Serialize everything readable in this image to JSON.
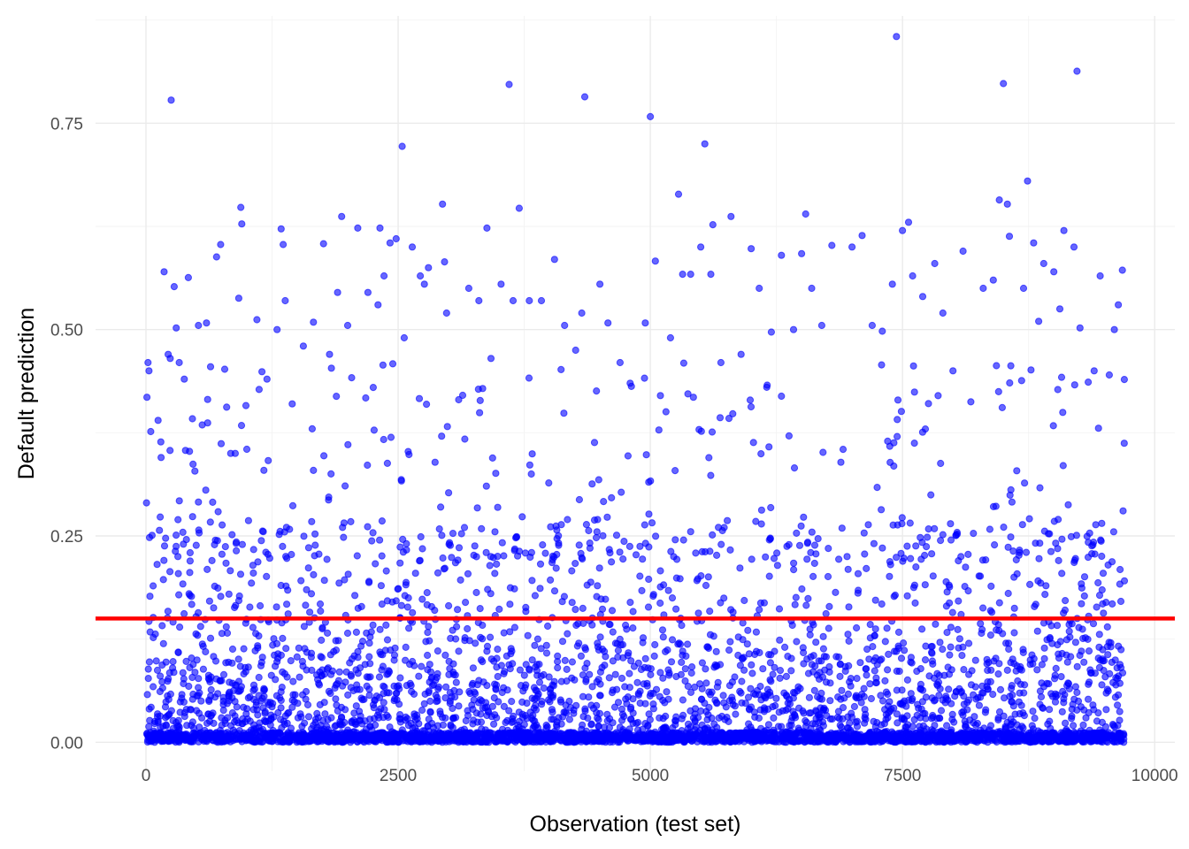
{
  "chart_data": {
    "type": "scatter",
    "title": "",
    "xlabel": "Observation (test set)",
    "ylabel": "Default prediction",
    "xlim": [
      -500,
      10200
    ],
    "ylim": [
      -0.035,
      0.88
    ],
    "x_ticks": [
      0,
      2500,
      5000,
      7500,
      10000
    ],
    "x_tick_labels": [
      "0",
      "2500",
      "5000",
      "7500",
      "10000"
    ],
    "y_ticks": [
      0.0,
      0.25,
      0.5,
      0.75
    ],
    "y_tick_labels": [
      "0.00",
      "0.25",
      "0.50",
      "0.75"
    ],
    "grid": true,
    "point_color": "#0000ff",
    "point_opacity": 0.6,
    "reference_line": {
      "y": 0.15,
      "color": "#ff0000"
    },
    "n_observations": 9700,
    "series": [
      {
        "points": [
          [
            10,
            0.418
          ],
          [
            20,
            0.46
          ],
          [
            30,
            0.45
          ],
          [
            120,
            0.39
          ],
          [
            150,
            0.345
          ],
          [
            180,
            0.57
          ],
          [
            220,
            0.47
          ],
          [
            240,
            0.465
          ],
          [
            250,
            0.778
          ],
          [
            280,
            0.552
          ],
          [
            300,
            0.502
          ],
          [
            330,
            0.46
          ],
          [
            380,
            0.44
          ],
          [
            420,
            0.563
          ],
          [
            460,
            0.392
          ],
          [
            520,
            0.505
          ],
          [
            600,
            0.508
          ],
          [
            640,
            0.455
          ],
          [
            700,
            0.588
          ],
          [
            740,
            0.603
          ],
          [
            800,
            0.406
          ],
          [
            840,
            0.35
          ],
          [
            920,
            0.538
          ],
          [
            940,
            0.648
          ],
          [
            950,
            0.628
          ],
          [
            1000,
            0.355
          ],
          [
            1100,
            0.512
          ],
          [
            1150,
            0.449
          ],
          [
            1200,
            0.44
          ],
          [
            1300,
            0.5
          ],
          [
            1340,
            0.622
          ],
          [
            1360,
            0.603
          ],
          [
            1380,
            0.535
          ],
          [
            1450,
            0.41
          ],
          [
            1560,
            0.48
          ],
          [
            1660,
            0.509
          ],
          [
            1760,
            0.604
          ],
          [
            1820,
            0.47
          ],
          [
            1900,
            0.545
          ],
          [
            1940,
            0.637
          ],
          [
            2000,
            0.505
          ],
          [
            2100,
            0.623
          ],
          [
            2200,
            0.545
          ],
          [
            2300,
            0.53
          ],
          [
            2320,
            0.623
          ],
          [
            2360,
            0.565
          ],
          [
            2420,
            0.605
          ],
          [
            2480,
            0.61
          ],
          [
            2540,
            0.722
          ],
          [
            2560,
            0.49
          ],
          [
            2640,
            0.6
          ],
          [
            2720,
            0.565
          ],
          [
            2760,
            0.555
          ],
          [
            2800,
            0.575
          ],
          [
            2940,
            0.652
          ],
          [
            2960,
            0.582
          ],
          [
            2980,
            0.52
          ],
          [
            3100,
            0.415
          ],
          [
            3200,
            0.55
          ],
          [
            3300,
            0.535
          ],
          [
            3380,
            0.623
          ],
          [
            3420,
            0.465
          ],
          [
            3520,
            0.555
          ],
          [
            3600,
            0.797
          ],
          [
            3640,
            0.535
          ],
          [
            3700,
            0.647
          ],
          [
            3800,
            0.535
          ],
          [
            3820,
            0.325
          ],
          [
            3920,
            0.535
          ],
          [
            4050,
            0.585
          ],
          [
            4150,
            0.505
          ],
          [
            4260,
            0.475
          ],
          [
            4320,
            0.52
          ],
          [
            4350,
            0.782
          ],
          [
            4500,
            0.555
          ],
          [
            4580,
            0.508
          ],
          [
            4700,
            0.46
          ],
          [
            4800,
            0.435
          ],
          [
            4950,
            0.508
          ],
          [
            5000,
            0.758
          ],
          [
            5050,
            0.583
          ],
          [
            5100,
            0.42
          ],
          [
            5200,
            0.49
          ],
          [
            5280,
            0.664
          ],
          [
            5320,
            0.567
          ],
          [
            5400,
            0.567
          ],
          [
            5500,
            0.6
          ],
          [
            5540,
            0.725
          ],
          [
            5600,
            0.567
          ],
          [
            5620,
            0.627
          ],
          [
            5700,
            0.46
          ],
          [
            5800,
            0.637
          ],
          [
            5900,
            0.47
          ],
          [
            6000,
            0.598
          ],
          [
            6080,
            0.55
          ],
          [
            6200,
            0.497
          ],
          [
            6300,
            0.59
          ],
          [
            6420,
            0.5
          ],
          [
            6500,
            0.592
          ],
          [
            6540,
            0.64
          ],
          [
            6600,
            0.55
          ],
          [
            6700,
            0.505
          ],
          [
            6800,
            0.602
          ],
          [
            7000,
            0.6
          ],
          [
            7100,
            0.614
          ],
          [
            7200,
            0.505
          ],
          [
            7300,
            0.498
          ],
          [
            7400,
            0.555
          ],
          [
            7440,
            0.855
          ],
          [
            7500,
            0.62
          ],
          [
            7560,
            0.63
          ],
          [
            7600,
            0.565
          ],
          [
            7700,
            0.54
          ],
          [
            7820,
            0.58
          ],
          [
            7900,
            0.52
          ],
          [
            8000,
            0.45
          ],
          [
            8100,
            0.595
          ],
          [
            8300,
            0.55
          ],
          [
            8400,
            0.56
          ],
          [
            8460,
            0.657
          ],
          [
            8500,
            0.798
          ],
          [
            8540,
            0.652
          ],
          [
            8560,
            0.613
          ],
          [
            8700,
            0.55
          ],
          [
            8740,
            0.68
          ],
          [
            8800,
            0.605
          ],
          [
            8850,
            0.51
          ],
          [
            8900,
            0.58
          ],
          [
            9000,
            0.57
          ],
          [
            9060,
            0.525
          ],
          [
            9100,
            0.62
          ],
          [
            9200,
            0.6
          ],
          [
            9230,
            0.813
          ],
          [
            9260,
            0.502
          ],
          [
            9400,
            0.45
          ],
          [
            9460,
            0.565
          ],
          [
            9550,
            0.445
          ],
          [
            9600,
            0.5
          ],
          [
            9640,
            0.53
          ],
          [
            9680,
            0.572
          ]
        ]
      }
    ]
  }
}
